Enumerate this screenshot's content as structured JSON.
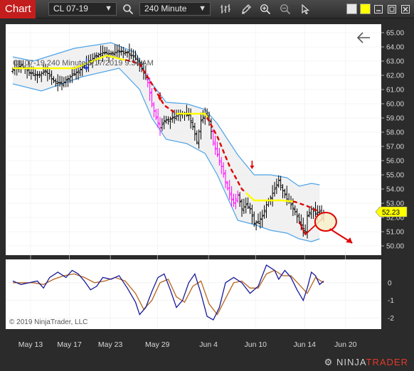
{
  "toolbar": {
    "tab_label": "Chart",
    "instrument": "CL 07-19",
    "interval": "240 Minute",
    "colors": {
      "accent": "#c41d1d",
      "swatch_1": "#ffff00",
      "swatch_2": "#e8e8e8"
    }
  },
  "chart": {
    "watermark": "CL 07-19  240 Minute  6/17/2019 9:34 AM",
    "copyright": "© 2019 NinjaTrader, LLC",
    "last_price": "52.23",
    "colors": {
      "background": "#ffffff",
      "band": "#4da3e8",
      "band_fill": "#eeeeee",
      "ma_up": "#ffff00",
      "ma_down": "#e00000",
      "bar_normal": "#000000",
      "bar_highlight": "#ff00ff",
      "osc_fast": "#1a1a99",
      "osc_slow": "#b5651d",
      "annotation": "#e00000"
    }
  },
  "chart_data": [
    {
      "type": "ohlc",
      "instrument": "CL 07-19",
      "interval": "240 Minute",
      "ylim": [
        49.5,
        65.5
      ],
      "y_ticks": [
        "65.00",
        "64.00",
        "63.00",
        "62.00",
        "61.00",
        "60.00",
        "59.00",
        "58.00",
        "57.00",
        "56.00",
        "55.00",
        "54.00",
        "53.00",
        "52.00",
        "51.00",
        "50.00"
      ],
      "x_ticks": [
        "May 13",
        "May 17",
        "May 23",
        "May 29",
        "Jun 4",
        "Jun 10",
        "Jun 14",
        "Jun 20"
      ],
      "price_path": [
        [
          0,
          62.4
        ],
        [
          4,
          62.7
        ],
        [
          8,
          62.2
        ],
        [
          12,
          62.0
        ],
        [
          16,
          62.3
        ],
        [
          20,
          61.6
        ],
        [
          24,
          61.4
        ],
        [
          28,
          61.9
        ],
        [
          32,
          62.3
        ],
        [
          36,
          62.8
        ],
        [
          40,
          63.3
        ],
        [
          44,
          63.6
        ],
        [
          48,
          63.5
        ],
        [
          52,
          63.7
        ],
        [
          56,
          63.6
        ],
        [
          60,
          63.2
        ],
        [
          62,
          62.8
        ],
        [
          66,
          61.5
        ],
        [
          68,
          60.0
        ],
        [
          70,
          59.0
        ],
        [
          72,
          58.3
        ],
        [
          74,
          58.8
        ],
        [
          78,
          59.0
        ],
        [
          82,
          59.3
        ],
        [
          86,
          59.2
        ],
        [
          88,
          58.4
        ],
        [
          90,
          57.3
        ],
        [
          92,
          58.8
        ],
        [
          94,
          59.3
        ],
        [
          96,
          58.8
        ],
        [
          98,
          57.3
        ],
        [
          100,
          56.4
        ],
        [
          102,
          55.6
        ],
        [
          104,
          54.5
        ],
        [
          106,
          53.6
        ],
        [
          108,
          53.0
        ],
        [
          110,
          53.6
        ],
        [
          112,
          52.6
        ],
        [
          114,
          52.9
        ],
        [
          116,
          52.6
        ],
        [
          118,
          51.6
        ],
        [
          120,
          51.7
        ],
        [
          122,
          52.1
        ],
        [
          124,
          52.9
        ],
        [
          126,
          53.4
        ],
        [
          128,
          54.0
        ],
        [
          130,
          54.6
        ],
        [
          132,
          53.9
        ],
        [
          134,
          53.3
        ],
        [
          136,
          52.9
        ],
        [
          138,
          52.4
        ],
        [
          140,
          51.7
        ],
        [
          142,
          51.2
        ],
        [
          143,
          51.0
        ],
        [
          144,
          52.1
        ],
        [
          146,
          52.6
        ],
        [
          148,
          52.3
        ],
        [
          150,
          52.4
        ],
        [
          152,
          52.23
        ]
      ],
      "highlight_ranges": [
        [
          66,
          72
        ],
        [
          98,
          110
        ]
      ],
      "bands": {
        "upper": [
          [
            0,
            63.3
          ],
          [
            10,
            63.0
          ],
          [
            30,
            63.9
          ],
          [
            48,
            64.3
          ],
          [
            60,
            63.6
          ],
          [
            66,
            61.8
          ],
          [
            75,
            60.1
          ],
          [
            85,
            60.0
          ],
          [
            94,
            59.6
          ],
          [
            100,
            58.6
          ],
          [
            110,
            56.4
          ],
          [
            118,
            55.0
          ],
          [
            126,
            55.0
          ],
          [
            134,
            54.8
          ],
          [
            140,
            54.2
          ],
          [
            146,
            54.4
          ],
          [
            150,
            54.3
          ]
        ],
        "lower": [
          [
            0,
            61.4
          ],
          [
            14,
            60.9
          ],
          [
            34,
            61.9
          ],
          [
            52,
            62.5
          ],
          [
            62,
            61.0
          ],
          [
            68,
            59.0
          ],
          [
            75,
            57.5
          ],
          [
            85,
            57.2
          ],
          [
            94,
            56.5
          ],
          [
            100,
            55.0
          ],
          [
            110,
            51.8
          ],
          [
            118,
            51.5
          ],
          [
            126,
            51.1
          ],
          [
            134,
            50.9
          ],
          [
            140,
            50.5
          ],
          [
            146,
            50.3
          ],
          [
            150,
            50.5
          ]
        ]
      },
      "moving_average": [
        [
          0,
          62.5
        ],
        [
          30,
          62.5
        ],
        [
          46,
          63.4
        ],
        [
          54,
          63.1
        ],
        [
          58,
          63.0
        ],
        [
          62,
          62.8
        ],
        [
          68,
          61.4
        ],
        [
          74,
          59.9
        ],
        [
          80,
          59.3
        ],
        [
          86,
          59.3
        ],
        [
          94,
          59.3
        ],
        [
          100,
          57.7
        ],
        [
          106,
          55.6
        ],
        [
          112,
          54.0
        ],
        [
          118,
          53.2
        ],
        [
          124,
          53.2
        ],
        [
          132,
          53.2
        ],
        [
          138,
          53.1
        ],
        [
          144,
          52.8
        ],
        [
          150,
          52.4
        ]
      ],
      "ma_up_segments": [
        [
          0,
          54
        ],
        [
          80,
          94
        ],
        [
          114,
          136
        ]
      ],
      "last_price": 52.23
    },
    {
      "type": "line",
      "name": "oscillator",
      "ylim": [
        -2.5,
        1.2
      ],
      "y_ticks": [
        "0",
        "-1",
        "-2"
      ],
      "series": [
        {
          "values": [
            [
              0,
              0.1
            ],
            [
              4,
              -0.1
            ],
            [
              8,
              0.0
            ],
            [
              12,
              0.1
            ],
            [
              15,
              -0.3
            ],
            [
              18,
              0.3
            ],
            [
              22,
              0.6
            ],
            [
              26,
              0.3
            ],
            [
              29,
              0.7
            ],
            [
              32,
              0.5
            ],
            [
              35,
              0.1
            ],
            [
              38,
              -0.4
            ],
            [
              41,
              -0.2
            ],
            [
              44,
              0.3
            ],
            [
              48,
              0.2
            ],
            [
              52,
              0.4
            ],
            [
              56,
              -0.3
            ],
            [
              60,
              -1.1
            ],
            [
              62,
              -1.8
            ],
            [
              65,
              -1.4
            ],
            [
              68,
              -0.5
            ],
            [
              71,
              0.3
            ],
            [
              74,
              0.5
            ],
            [
              77,
              -0.4
            ],
            [
              80,
              -1.4
            ],
            [
              83,
              -1.0
            ],
            [
              86,
              0.0
            ],
            [
              89,
              0.5
            ],
            [
              92,
              -0.6
            ],
            [
              95,
              -1.9
            ],
            [
              98,
              -2.1
            ],
            [
              101,
              -1.4
            ],
            [
              104,
              0.0
            ],
            [
              108,
              0.3
            ],
            [
              112,
              0.0
            ],
            [
              116,
              -0.6
            ],
            [
              120,
              -0.2
            ],
            [
              124,
              1.0
            ],
            [
              128,
              0.7
            ],
            [
              130,
              0.2
            ],
            [
              133,
              0.7
            ],
            [
              136,
              0.3
            ],
            [
              139,
              -0.4
            ],
            [
              142,
              -1.0
            ],
            [
              144,
              -0.3
            ],
            [
              146,
              0.6
            ],
            [
              148,
              0.4
            ],
            [
              150,
              -0.1
            ],
            [
              152,
              0.1
            ]
          ]
        },
        {
          "values": [
            [
              0,
              0.0
            ],
            [
              5,
              0.0
            ],
            [
              10,
              0.0
            ],
            [
              15,
              -0.1
            ],
            [
              20,
              0.2
            ],
            [
              25,
              0.4
            ],
            [
              30,
              0.5
            ],
            [
              35,
              0.3
            ],
            [
              40,
              0.0
            ],
            [
              45,
              0.1
            ],
            [
              50,
              0.3
            ],
            [
              55,
              0.1
            ],
            [
              60,
              -0.6
            ],
            [
              64,
              -1.5
            ],
            [
              68,
              -1.0
            ],
            [
              72,
              0.0
            ],
            [
              76,
              0.2
            ],
            [
              80,
              -0.8
            ],
            [
              84,
              -1.1
            ],
            [
              88,
              -0.2
            ],
            [
              92,
              0.1
            ],
            [
              96,
              -1.2
            ],
            [
              100,
              -1.8
            ],
            [
              104,
              -0.9
            ],
            [
              108,
              0.0
            ],
            [
              112,
              0.1
            ],
            [
              116,
              -0.3
            ],
            [
              120,
              -0.3
            ],
            [
              124,
              0.5
            ],
            [
              128,
              0.7
            ],
            [
              132,
              0.4
            ],
            [
              136,
              0.4
            ],
            [
              140,
              -0.1
            ],
            [
              144,
              -0.6
            ],
            [
              148,
              0.3
            ],
            [
              152,
              0.0
            ]
          ]
        }
      ]
    }
  ]
}
